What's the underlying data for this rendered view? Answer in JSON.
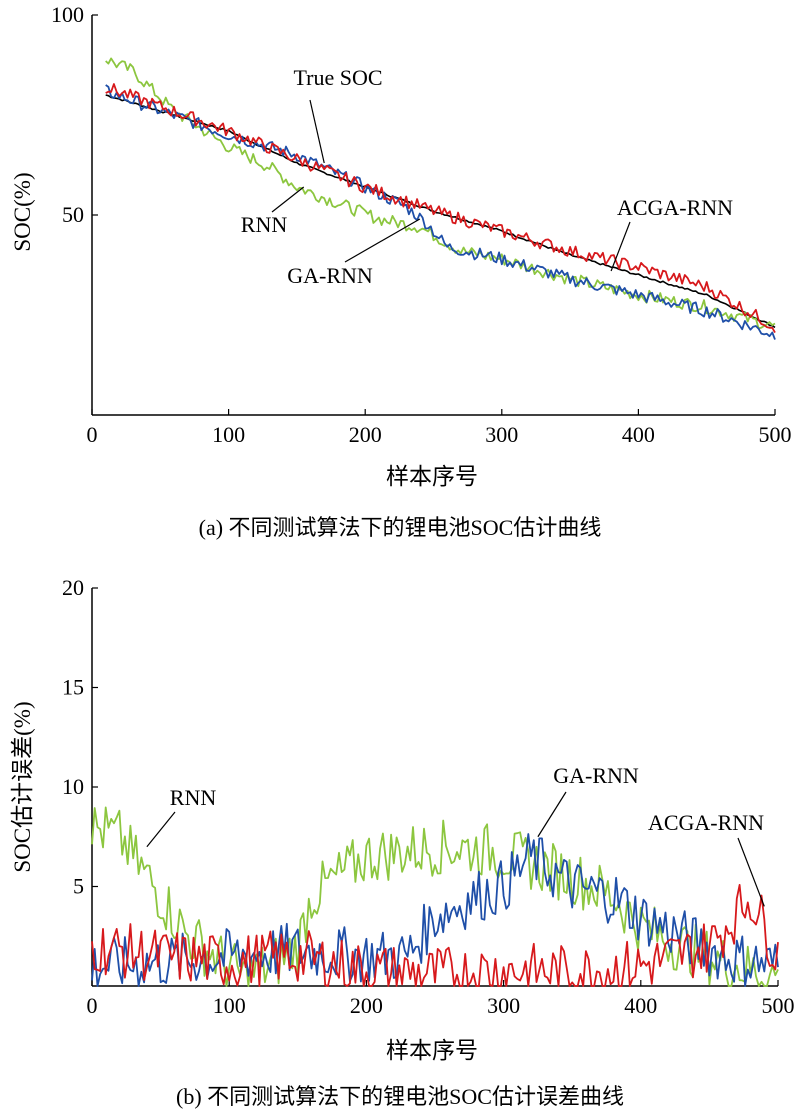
{
  "colors": {
    "true_soc": "#000000",
    "rnn": "#8cc63f",
    "ga_rnn": "#1f4fa8",
    "acga_rnn": "#d7191c"
  },
  "chart_data": [
    {
      "type": "line",
      "caption": "(a) 不同测试算法下的锂电池SOC估计曲线",
      "xlabel": "样本序号",
      "ylabel": "SOC(%)",
      "xlim": [
        0,
        500
      ],
      "ylim": [
        0,
        100
      ],
      "x_ticks": [
        "0",
        "100",
        "200",
        "300",
        "400",
        "500"
      ],
      "y_ticks": [
        "50",
        "100"
      ],
      "series": [
        {
          "name": "True SOC",
          "color": "#000000",
          "x": [
            10,
            100,
            150,
            200,
            250,
            300,
            350,
            400,
            450,
            500
          ],
          "y": [
            80,
            71,
            63,
            57,
            51,
            46,
            40,
            35,
            30,
            22
          ]
        },
        {
          "name": "RNN",
          "color": "#8cc63f",
          "x": [
            10,
            30,
            60,
            100,
            130,
            150,
            180,
            210,
            240,
            270,
            300,
            350,
            400,
            450,
            500
          ],
          "y": [
            89,
            86,
            76,
            67,
            62,
            57,
            53,
            49,
            47,
            41,
            39,
            34,
            30,
            27,
            22
          ]
        },
        {
          "name": "GA-RNN",
          "color": "#1f4fa8",
          "x": [
            10,
            100,
            150,
            200,
            230,
            245,
            260,
            300,
            350,
            400,
            450,
            500
          ],
          "y": [
            81,
            70,
            65,
            57,
            52,
            48,
            42,
            39,
            34,
            30,
            26,
            20
          ]
        },
        {
          "name": "ACGA-RNN",
          "color": "#d7191c",
          "x": [
            10,
            100,
            150,
            200,
            250,
            300,
            350,
            400,
            450,
            500
          ],
          "y": [
            82,
            71,
            64,
            57,
            51,
            46,
            41,
            37,
            32,
            22
          ]
        }
      ],
      "annotations": [
        {
          "text": "True SOC",
          "points_to": [
            170,
            63
          ]
        },
        {
          "text": "RNN",
          "points_to": [
            155,
            57
          ]
        },
        {
          "text": "GA-RNN",
          "points_to": [
            240,
            49
          ]
        },
        {
          "text": "ACGA-RNN",
          "points_to": [
            380,
            36
          ]
        }
      ]
    },
    {
      "type": "line",
      "caption": "(b) 不同测试算法下的锂电池SOC估计误差曲线",
      "xlabel": "样本序号",
      "ylabel": "SOC估计误差(%)",
      "xlim": [
        0,
        500
      ],
      "ylim": [
        0,
        20
      ],
      "x_ticks": [
        "0",
        "100",
        "200",
        "300",
        "400",
        "500"
      ],
      "y_ticks": [
        "5",
        "10",
        "15",
        "20"
      ],
      "series": [
        {
          "name": "RNN",
          "color": "#8cc63f",
          "x": [
            0,
            20,
            35,
            50,
            70,
            90,
            110,
            130,
            150,
            160,
            180,
            200,
            230,
            260,
            290,
            320,
            350,
            380,
            400,
            430,
            460,
            480,
            500
          ],
          "y": [
            8.0,
            7.5,
            6.0,
            4.5,
            2.5,
            1.5,
            0.5,
            1.0,
            2.0,
            4.5,
            5.5,
            6.5,
            6.8,
            7.0,
            6.8,
            6.2,
            5.5,
            4.5,
            3.0,
            2.0,
            1.2,
            0.8,
            0.5
          ]
        },
        {
          "name": "GA-RNN",
          "color": "#1f4fa8",
          "x": [
            0,
            50,
            100,
            150,
            200,
            230,
            250,
            280,
            300,
            320,
            350,
            380,
            400,
            430,
            460,
            500
          ],
          "y": [
            1.0,
            1.2,
            1.5,
            1.8,
            1.5,
            1.5,
            3.5,
            4.5,
            5.0,
            6.5,
            5.0,
            4.5,
            3.5,
            2.5,
            1.5,
            1.0
          ]
        },
        {
          "name": "ACGA-RNN",
          "color": "#d7191c",
          "x": [
            0,
            50,
            100,
            150,
            200,
            250,
            300,
            350,
            400,
            450,
            480,
            500
          ],
          "y": [
            2.0,
            1.5,
            1.2,
            1.5,
            0.8,
            0.6,
            0.8,
            0.7,
            1.0,
            2.0,
            4.5,
            1.5
          ]
        }
      ],
      "annotations": [
        {
          "text": "RNN",
          "points_to": [
            40,
            7
          ]
        },
        {
          "text": "GA-RNN",
          "points_to": [
            325,
            7.5
          ]
        },
        {
          "text": "ACGA-RNN",
          "points_to": [
            490,
            4
          ]
        }
      ]
    }
  ]
}
